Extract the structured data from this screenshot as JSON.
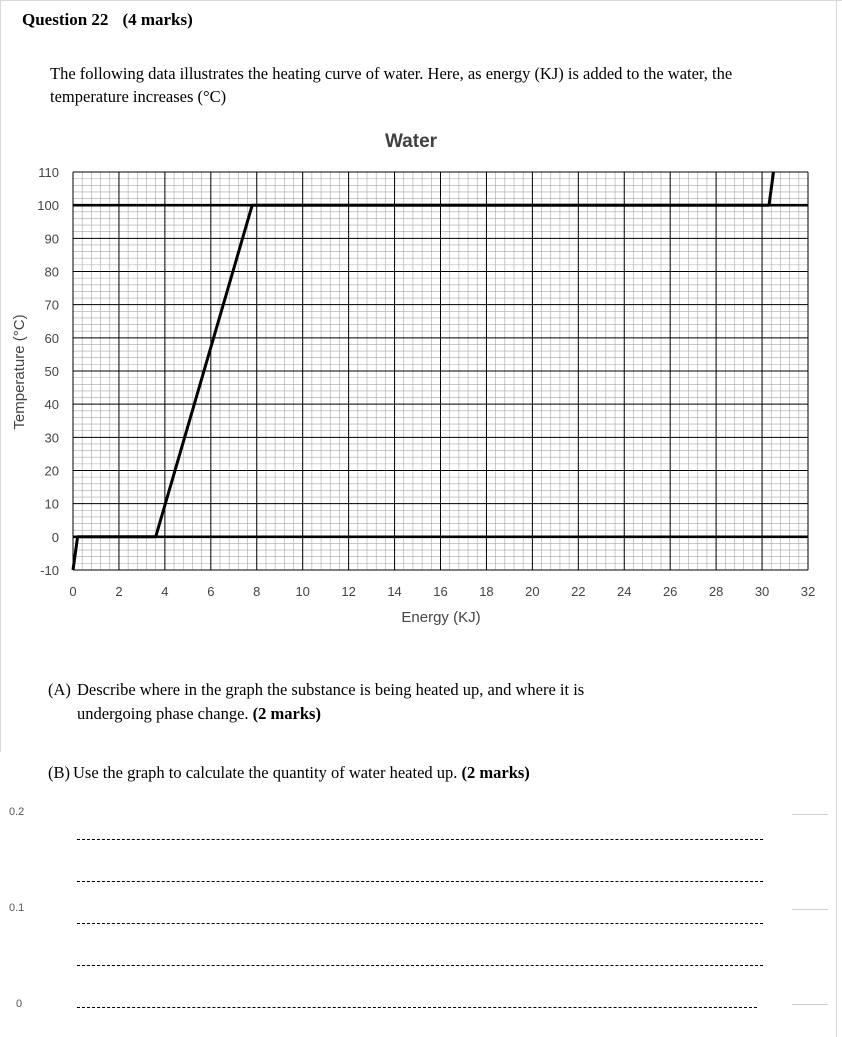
{
  "question": {
    "title": "Question 22",
    "marks": "(4 marks)"
  },
  "intro_text": "The following data illustrates the heating curve of water. Here, as energy (KJ) is added to the water, the temperature increases (°C)",
  "parts": [
    {
      "label": "(A)",
      "line1": "Describe where in the graph the substance is being heated up, and where it is",
      "line2": "undergoing phase change.",
      "marks": "(2 marks)"
    },
    {
      "label": "(B)",
      "text": "Use the graph to calculate the quantity of water heated up.",
      "marks": "(2 marks)"
    }
  ],
  "side_axis_ticks": [
    "0.2",
    "0.1",
    "0"
  ],
  "chart_data": {
    "type": "line",
    "title": "Water",
    "xlabel": "Energy (KJ)",
    "ylabel": "Temperature (°C)",
    "xlim": [
      0,
      32
    ],
    "ylim": [
      -10,
      110
    ],
    "x_ticks": [
      0,
      2,
      4,
      6,
      8,
      10,
      12,
      14,
      16,
      18,
      20,
      22,
      24,
      26,
      28,
      30,
      32
    ],
    "y_ticks": [
      -10,
      0,
      10,
      20,
      30,
      40,
      50,
      60,
      70,
      80,
      90,
      100,
      110
    ],
    "grid": true,
    "legend": "none",
    "series": [
      {
        "color": "#000000",
        "x": [
          0,
          0.2,
          3.6,
          7.8,
          30.3,
          30.5
        ],
        "y": [
          -10,
          0,
          0,
          100,
          100,
          110
        ]
      }
    ],
    "reference_lines": [
      {
        "axis": "y",
        "value": 0
      },
      {
        "axis": "y",
        "value": 100
      }
    ]
  }
}
